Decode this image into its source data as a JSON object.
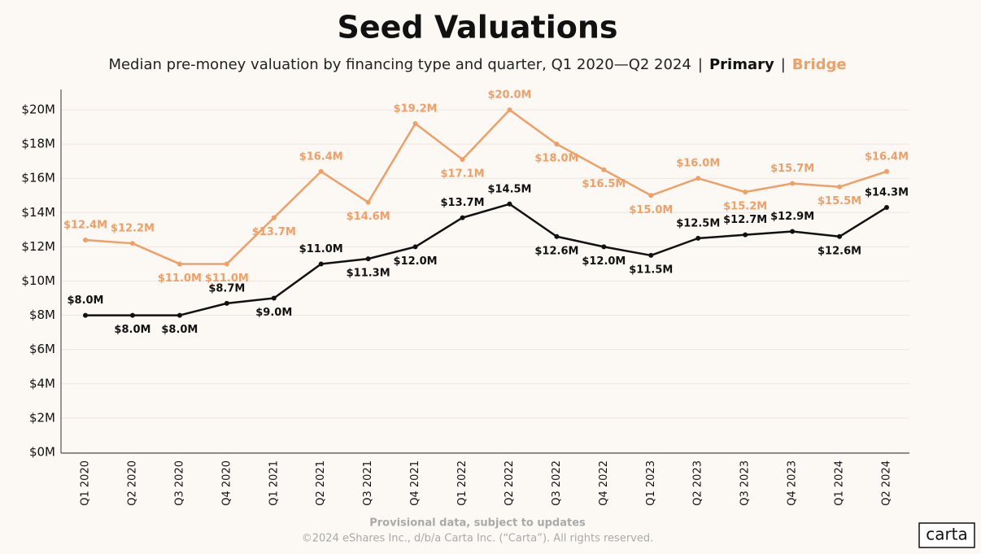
{
  "chart_data": {
    "type": "line",
    "title": "Seed Valuations",
    "subtitle": "Median pre-money valuation by financing type and quarter, Q1 2020—Q2 2024",
    "legend_separator": "|",
    "categories": [
      "Q1 2020",
      "Q2 2020",
      "Q3 2020",
      "Q4 2020",
      "Q1 2021",
      "Q2 2021",
      "Q3 2021",
      "Q4 2021",
      "Q1 2022",
      "Q2 2022",
      "Q3 2022",
      "Q4 2022",
      "Q1 2023",
      "Q2 2023",
      "Q3 2023",
      "Q4 2023",
      "Q1 2024",
      "Q2 2024"
    ],
    "series": [
      {
        "name": "Primary",
        "color": "#111111",
        "values": [
          8000000,
          8000000,
          8000000,
          8700000,
          9000000,
          11000000,
          11300000,
          12000000,
          13700000,
          14500000,
          12600000,
          12000000,
          11500000,
          12500000,
          12700000,
          12900000,
          12600000,
          14300000
        ],
        "value_labels": [
          "$8.0M",
          "$8.0M",
          "$8.0M",
          "$8.7M",
          "$9.0M",
          "$11.0M",
          "$11.3M",
          "$12.0M",
          "$13.7M",
          "$14.5M",
          "$12.6M",
          "$12.0M",
          "$11.5M",
          "$12.5M",
          "$12.7M",
          "$12.9M",
          "$12.6M",
          "$14.3M"
        ]
      },
      {
        "name": "Bridge",
        "color": "#f0a066",
        "values": [
          12400000,
          12200000,
          11000000,
          11000000,
          13700000,
          16400000,
          14600000,
          19200000,
          17100000,
          20000000,
          18000000,
          16500000,
          15000000,
          16000000,
          15200000,
          15700000,
          15500000,
          16400000
        ],
        "value_labels": [
          "$12.4M",
          "$12.2M",
          "$11.0M",
          "$11.0M",
          "$13.7M",
          "$16.4M",
          "$14.6M",
          "$19.2M",
          "$17.1M",
          "$20.0M",
          "$18.0M",
          "$16.5M",
          "$15.0M",
          "$16.0M",
          "$15.2M",
          "$15.7M",
          "$15.5M",
          "$16.4M"
        ]
      }
    ],
    "ylim": [
      0,
      20000000
    ],
    "yticks": [
      {
        "value": 0,
        "label": "$0M"
      },
      {
        "value": 2000000,
        "label": "$2M"
      },
      {
        "value": 4000000,
        "label": "$4M"
      },
      {
        "value": 6000000,
        "label": "$6M"
      },
      {
        "value": 8000000,
        "label": "$8M"
      },
      {
        "value": 10000000,
        "label": "$10M"
      },
      {
        "value": 12000000,
        "label": "$12M"
      },
      {
        "value": 14000000,
        "label": "$14M"
      },
      {
        "value": 16000000,
        "label": "$16M"
      },
      {
        "value": 18000000,
        "label": "$18M"
      },
      {
        "value": 20000000,
        "label": "$20M"
      }
    ],
    "grid": true,
    "footnote": "Provisional data, subject to updates",
    "copyright": "©2024 eShares Inc., d/b/a Carta Inc. (“Carta”). All rights reserved.",
    "logo": "carta"
  }
}
